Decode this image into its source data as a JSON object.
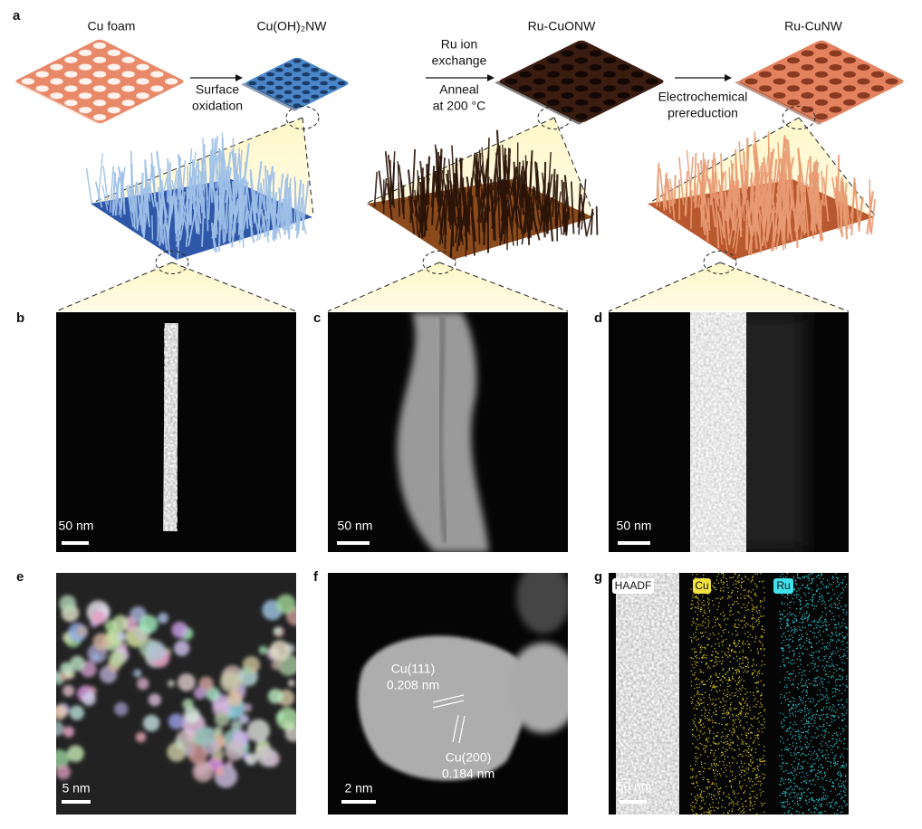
{
  "panel_labels": [
    "a",
    "b",
    "c",
    "d",
    "e",
    "f",
    "g"
  ],
  "stages": [
    "Cu foam",
    "Cu(OH)₂NW",
    "Ru-CuONW",
    "Ru-CuNW"
  ],
  "steps": [
    [
      "Surface",
      "oxidation"
    ],
    [
      "Ru ion",
      "exchange"
    ],
    [
      "Anneal",
      "at 200 °C"
    ],
    [
      "Electrochemical",
      "prereduction"
    ]
  ],
  "scale_bars": [
    "50 nm",
    "50 nm",
    "50 nm",
    "5 nm",
    "2 nm",
    "50 nm"
  ],
  "lattice": {
    "plane_1": "Cu(111)",
    "spacing_1": "0.208 nm",
    "plane_2": "Cu(200)",
    "spacing_2": "0.184 nm"
  },
  "maps": [
    "HAADF",
    "Cu",
    "Ru"
  ]
}
